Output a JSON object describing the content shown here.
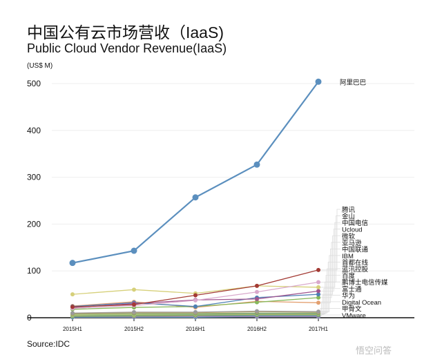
{
  "chart_data": {
    "type": "line",
    "title": "中国公有云市场营收（IaaS)",
    "subtitle": "Public Cloud Vendor Revenue(IaaS)",
    "ylabel": "(US$ M)",
    "source": "Source:IDC",
    "categories": [
      "2015H1",
      "2015H2",
      "2016H1",
      "2016H2",
      "2017H1"
    ],
    "ylim": [
      0,
      500
    ],
    "yticks": [
      0,
      100,
      200,
      300,
      400,
      500
    ],
    "grid": true,
    "series": [
      {
        "name": "阿里巴巴",
        "color": "#5b8fbe",
        "values": [
          117,
          143,
          257,
          327,
          504
        ]
      },
      {
        "name": "腾讯",
        "color": "#a33a34",
        "values": [
          23,
          28,
          48,
          68,
          102
        ]
      },
      {
        "name": "金山",
        "color": "#d9a9cc",
        "values": [
          20,
          26,
          37,
          55,
          76
        ]
      },
      {
        "name": "中国电信",
        "color": "#d6d07a",
        "values": [
          50,
          60,
          52,
          68,
          65
        ]
      },
      {
        "name": "Ucloud",
        "color": "#a0558f",
        "values": [
          22,
          30,
          38,
          40,
          57
        ]
      },
      {
        "name": "微软",
        "color": "#4d7fb5",
        "values": [
          24,
          32,
          24,
          43,
          50
        ]
      },
      {
        "name": "亚马逊",
        "color": "#86b85a",
        "values": [
          18,
          22,
          24,
          33,
          43
        ]
      },
      {
        "name": "中国联通",
        "color": "#e3a070",
        "values": [
          25,
          34,
          22,
          35,
          32
        ]
      },
      {
        "name": "IBM",
        "color": "#9a9a9a",
        "values": [
          10,
          12,
          12,
          14,
          13
        ]
      },
      {
        "name": "首都在线",
        "color": "#c9a55a",
        "values": [
          9,
          11,
          11,
          13,
          12
        ]
      },
      {
        "name": "蓝汛控股",
        "color": "#7aa070",
        "values": [
          8,
          9,
          9,
          10,
          10
        ]
      },
      {
        "name": "百度",
        "color": "#b5c76b",
        "values": [
          6,
          7,
          8,
          9,
          9
        ]
      },
      {
        "name": "鹏博士电信传媒",
        "color": "#6aa89a",
        "values": [
          5,
          6,
          7,
          8,
          8
        ]
      },
      {
        "name": "富士通",
        "color": "#d4b04e",
        "values": [
          4,
          5,
          6,
          7,
          7
        ]
      },
      {
        "name": "华为",
        "color": "#4caa5a",
        "values": [
          3,
          4,
          5,
          6,
          6
        ]
      },
      {
        "name": "Digital Ocean",
        "color": "#8888c0",
        "values": [
          2,
          3,
          4,
          4,
          4
        ]
      },
      {
        "name": "甲骨文",
        "color": "#c07a9a",
        "values": [
          2,
          2,
          3,
          3,
          3
        ]
      },
      {
        "name": "VMware",
        "color": "#5a9bc4",
        "values": [
          1,
          1,
          1,
          2,
          2
        ]
      }
    ]
  },
  "watermark": "悟空问答"
}
